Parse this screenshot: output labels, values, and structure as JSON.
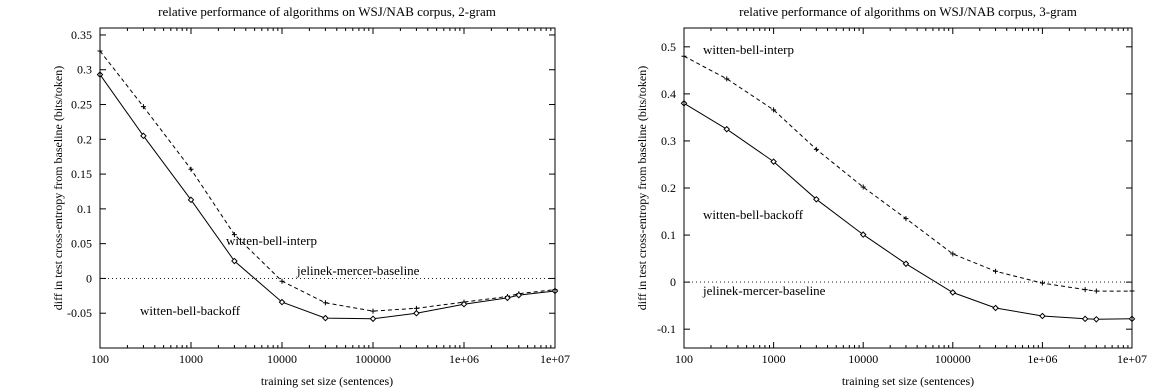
{
  "chart_data": [
    {
      "type": "line",
      "title": "relative performance of algorithms on WSJ/NAB corpus, 2-gram",
      "xlabel": "training set size (sentences)",
      "ylabel": "diff in test cross-entropy from baseline (bits/token)",
      "xscale": "log",
      "xlim": [
        100,
        10000000
      ],
      "ylim": [
        -0.1,
        0.36
      ],
      "xticks": [
        100,
        1000,
        10000,
        100000,
        1000000,
        10000000
      ],
      "xtick_labels": [
        "100",
        "1000",
        "10000",
        "100000",
        "1e+06",
        "1e+07"
      ],
      "yticks": [
        -0.05,
        0,
        0.05,
        0.1,
        0.15,
        0.2,
        0.25,
        0.3,
        0.35
      ],
      "ytick_labels": [
        "-0.05",
        "0",
        "0.05",
        "0.1",
        "0.15",
        "0.2",
        "0.25",
        "0.3",
        "0.35"
      ],
      "grid": false,
      "series": [
        {
          "name": "witten-bell-interp",
          "style": "dashed",
          "marker": "plus",
          "x": [
            100,
            300,
            1000,
            3000,
            10000,
            30000,
            100000,
            300000,
            1000000,
            3000000,
            4000000,
            10000000
          ],
          "y": [
            0.327,
            0.247,
            0.157,
            0.063,
            -0.004,
            -0.035,
            -0.047,
            -0.043,
            -0.034,
            -0.026,
            -0.022,
            -0.016
          ]
        },
        {
          "name": "witten-bell-backoff",
          "style": "solid",
          "marker": "diamond",
          "x": [
            100,
            300,
            1000,
            3000,
            10000,
            30000,
            100000,
            300000,
            1000000,
            3000000,
            4000000,
            10000000
          ],
          "y": [
            0.293,
            0.205,
            0.113,
            0.025,
            -0.034,
            -0.057,
            -0.058,
            -0.05,
            -0.037,
            -0.028,
            -0.024,
            -0.018
          ]
        },
        {
          "name": "jelinek-mercer-baseline",
          "style": "dotted",
          "marker": "none",
          "x": [
            100,
            10000000
          ],
          "y": [
            0,
            0
          ]
        }
      ]
    },
    {
      "type": "line",
      "title": "relative performance of algorithms on WSJ/NAB corpus, 3-gram",
      "xlabel": "training set size (sentences)",
      "ylabel": "diff in test cross-entropy from baseline (bits/token)",
      "xscale": "log",
      "xlim": [
        100,
        10000000
      ],
      "ylim": [
        -0.14,
        0.54
      ],
      "xticks": [
        100,
        1000,
        10000,
        100000,
        1000000,
        10000000
      ],
      "xtick_labels": [
        "100",
        "1000",
        "10000",
        "100000",
        "1e+06",
        "1e+07"
      ],
      "yticks": [
        -0.1,
        0,
        0.1,
        0.2,
        0.3,
        0.4,
        0.5
      ],
      "ytick_labels": [
        "-0.1",
        "0",
        "0.1",
        "0.2",
        "0.3",
        "0.4",
        "0.5"
      ],
      "grid": false,
      "series": [
        {
          "name": "witten-bell-interp",
          "style": "dashed",
          "marker": "plus",
          "x": [
            100,
            300,
            1000,
            3000,
            10000,
            30000,
            100000,
            300000,
            1000000,
            3000000,
            4000000,
            10000000
          ],
          "y": [
            0.48,
            0.432,
            0.366,
            0.282,
            0.202,
            0.135,
            0.06,
            0.023,
            -0.002,
            -0.016,
            -0.019,
            -0.019
          ]
        },
        {
          "name": "witten-bell-backoff",
          "style": "solid",
          "marker": "diamond",
          "x": [
            100,
            300,
            1000,
            3000,
            10000,
            30000,
            100000,
            300000,
            1000000,
            3000000,
            4000000,
            10000000
          ],
          "y": [
            0.38,
            0.325,
            0.256,
            0.176,
            0.101,
            0.039,
            -0.022,
            -0.055,
            -0.072,
            -0.078,
            -0.079,
            -0.078
          ]
        },
        {
          "name": "jelinek-mercer-baseline",
          "style": "dotted",
          "marker": "none",
          "x": [
            100,
            10000000
          ],
          "y": [
            0,
            0
          ]
        }
      ]
    }
  ]
}
